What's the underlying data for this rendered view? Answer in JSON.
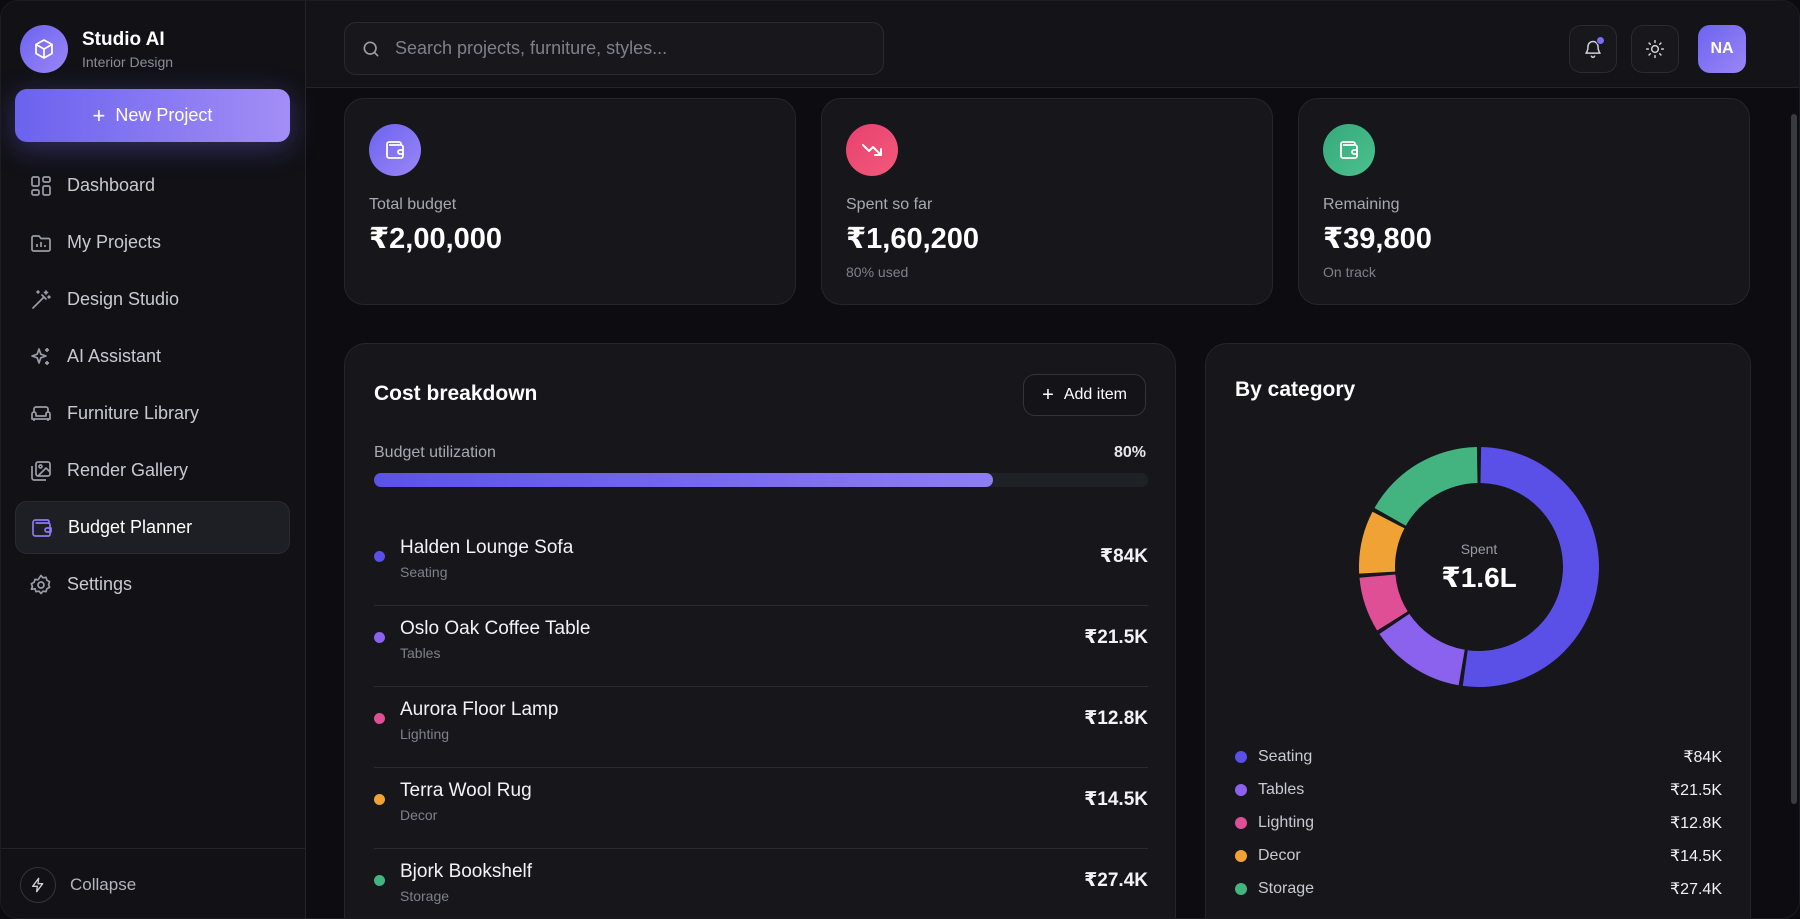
{
  "brand": {
    "name": "Studio AI",
    "subtitle": "Interior Design"
  },
  "sidebar": {
    "new_project_label": "New Project",
    "items": [
      {
        "label": "Dashboard",
        "icon": "grid-icon"
      },
      {
        "label": "My Projects",
        "icon": "folder-icon"
      },
      {
        "label": "Design Studio",
        "icon": "wand-icon"
      },
      {
        "label": "AI Assistant",
        "icon": "sparkles-icon"
      },
      {
        "label": "Furniture Library",
        "icon": "sofa-icon"
      },
      {
        "label": "Render Gallery",
        "icon": "gallery-icon"
      },
      {
        "label": "Budget Planner",
        "icon": "wallet-icon",
        "active": true
      },
      {
        "label": "Settings",
        "icon": "gear-icon"
      }
    ],
    "collapse_label": "Collapse"
  },
  "topbar": {
    "search_placeholder": "Search projects, furniture, styles...",
    "avatar_initials": "NA"
  },
  "stats": [
    {
      "label": "Total budget",
      "value": "₹2,00,000",
      "note": "",
      "color": "#7a6cf2",
      "icon": "wallet-icon"
    },
    {
      "label": "Spent so far",
      "value": "₹1,60,200",
      "note": "80% used",
      "color": "#e8406f",
      "icon": "trending-down-icon"
    },
    {
      "label": "Remaining",
      "value": "₹39,800",
      "note": "On track",
      "color": "#3fb583",
      "icon": "wallet-icon"
    }
  ],
  "cost_breakdown": {
    "title": "Cost breakdown",
    "add_item_label": "Add item",
    "utilization_label": "Budget utilization",
    "utilization_text": "80%",
    "utilization_fraction": 0.8,
    "items": [
      {
        "name": "Halden Lounge Sofa",
        "category": "Seating",
        "cost": "₹84K",
        "color": "#5a4fe6"
      },
      {
        "name": "Oslo Oak Coffee Table",
        "category": "Tables",
        "cost": "₹21.5K",
        "color": "#8b62ee"
      },
      {
        "name": "Aurora Floor Lamp",
        "category": "Lighting",
        "cost": "₹12.8K",
        "color": "#df4f95"
      },
      {
        "name": "Terra Wool Rug",
        "category": "Decor",
        "cost": "₹14.5K",
        "color": "#f0a235"
      },
      {
        "name": "Bjork Bookshelf",
        "category": "Storage",
        "cost": "₹27.4K",
        "color": "#43b47f"
      }
    ]
  },
  "chart_data": {
    "type": "pie",
    "title": "By category",
    "center_label": "Spent",
    "center_value": "₹1.6L",
    "categories": [
      "Seating",
      "Tables",
      "Lighting",
      "Decor",
      "Storage"
    ],
    "values": [
      84,
      21.5,
      12.8,
      14.5,
      27.4
    ],
    "value_labels": [
      "₹84K",
      "₹21.5K",
      "₹12.8K",
      "₹14.5K",
      "₹27.4K"
    ],
    "colors": [
      "#5a4fe6",
      "#8b62ee",
      "#df4f95",
      "#f0a235",
      "#43b47f"
    ],
    "legend_position": "bottom"
  }
}
